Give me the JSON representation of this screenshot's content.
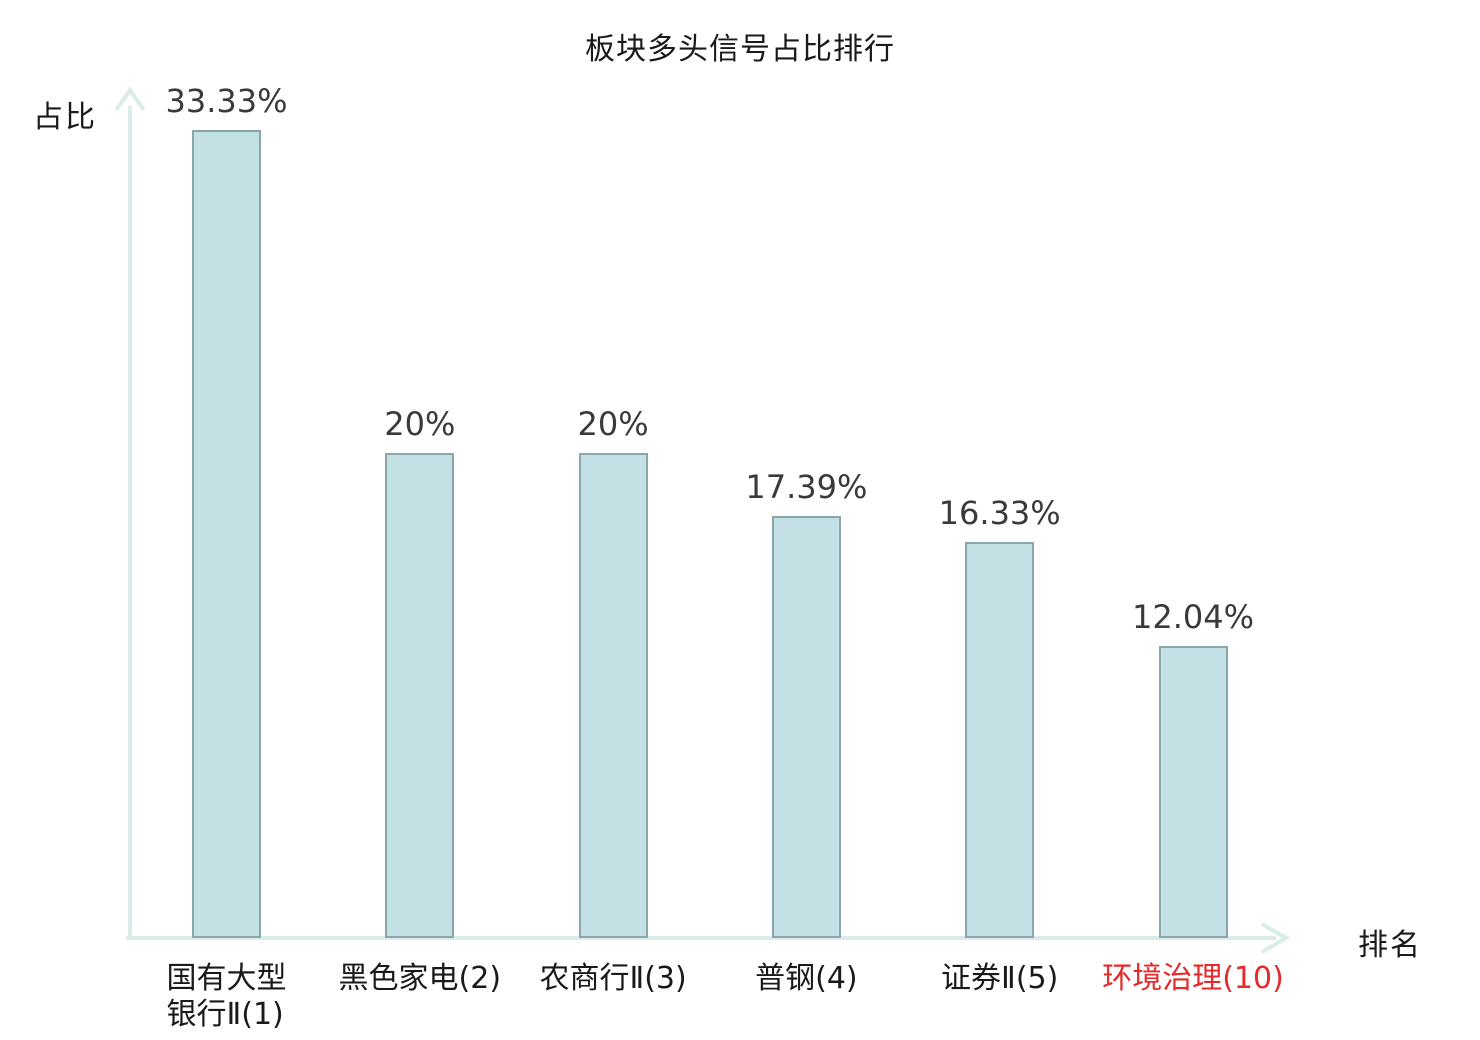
{
  "chart_data": {
    "type": "bar",
    "title": "板块多头信号占比排行",
    "ylabel": "占比",
    "xlabel": "排名",
    "categories": [
      "国有大型\n银行Ⅱ(1)",
      "黑色家电(2)",
      "农商行Ⅱ(3)",
      "普钢(4)",
      "证券Ⅱ(5)",
      "环境治理(10)"
    ],
    "values": [
      33.33,
      20,
      20,
      17.39,
      16.33,
      12.04
    ],
    "value_labels": [
      "33.33%",
      "20%",
      "20%",
      "17.39%",
      "16.33%",
      "12.04%"
    ],
    "ylim": [
      0,
      35
    ],
    "grid": false,
    "legend": "none",
    "highlight_index": 5,
    "colors": {
      "bar_fill": "#c3e1e4",
      "bar_border": "#8ba6a9",
      "axis": "#d9ece9",
      "title_text": "#1a1a1a",
      "value_text": "#3a3a3a",
      "category_text": "#1a1a1a",
      "highlight_text": "#e42a2a"
    }
  }
}
